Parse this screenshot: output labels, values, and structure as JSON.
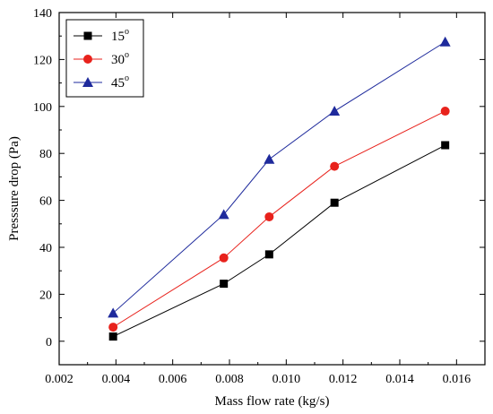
{
  "chart_data": {
    "type": "line",
    "title": "",
    "xlabel": "Mass flow rate (kg/s)",
    "ylabel": "Presssure drop (Pa)",
    "xlim": [
      0.002,
      0.017
    ],
    "ylim": [
      -10,
      140
    ],
    "xticks": [
      "0.002",
      "0.004",
      "0.006",
      "0.008",
      "0.010",
      "0.012",
      "0.014",
      "0.016"
    ],
    "xtick_values": [
      0.002,
      0.004,
      0.006,
      0.008,
      0.01,
      0.012,
      0.014,
      0.016
    ],
    "yticks": [
      "0",
      "20",
      "40",
      "60",
      "80",
      "100",
      "120",
      "140"
    ],
    "ytick_values": [
      0,
      20,
      40,
      60,
      80,
      100,
      120,
      140
    ],
    "grid": false,
    "legend_position": "top-left",
    "series": [
      {
        "name": "15",
        "name_superscript": "o",
        "color": "#000000",
        "marker": "square",
        "x": [
          0.0039,
          0.0078,
          0.0094,
          0.0117,
          0.0156
        ],
        "y": [
          2.0,
          24.5,
          37.0,
          59.0,
          83.5
        ]
      },
      {
        "name": "30",
        "name_superscript": "o",
        "color": "#e8221c",
        "marker": "circle",
        "x": [
          0.0039,
          0.0078,
          0.0094,
          0.0117,
          0.0156
        ],
        "y": [
          6.0,
          35.5,
          53.0,
          74.5,
          98.0
        ]
      },
      {
        "name": "45",
        "name_superscript": "o",
        "color": "#1e2a9c",
        "marker": "triangle",
        "x": [
          0.0039,
          0.0078,
          0.0094,
          0.0117,
          0.0156
        ],
        "y": [
          12.0,
          54.0,
          77.5,
          98.0,
          127.5
        ]
      }
    ]
  }
}
